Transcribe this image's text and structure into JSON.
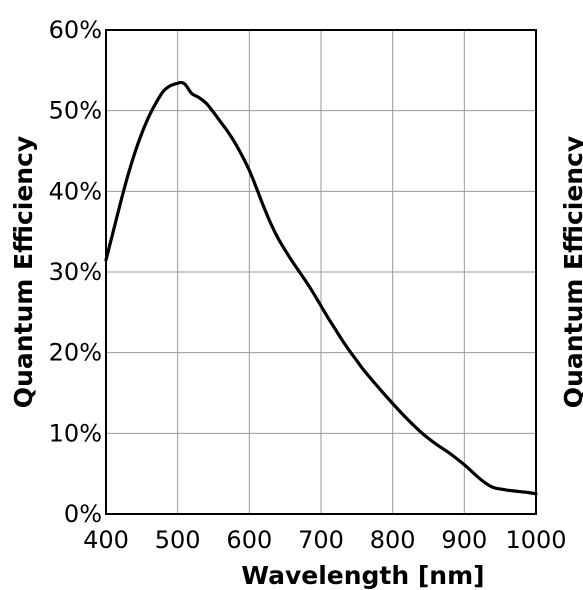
{
  "chart_data": {
    "type": "line",
    "title": "",
    "xlabel": "Wavelength [nm]",
    "ylabel": "Quantum Efficiency",
    "xlim": [
      400,
      1000
    ],
    "ylim": [
      0,
      60
    ],
    "x_ticks": [
      400,
      500,
      600,
      700,
      800,
      900,
      1000
    ],
    "x_tick_labels": [
      "400",
      "500",
      "600",
      "700",
      "800",
      "900",
      "1000"
    ],
    "y_ticks": [
      0,
      10,
      20,
      30,
      40,
      50,
      60
    ],
    "y_tick_labels": [
      "0%",
      "10%",
      "20%",
      "30%",
      "40%",
      "50%",
      "60%"
    ],
    "grid": true,
    "line_color": "#000000",
    "clipped_neighbor_ylabel": "Quantum Efficiency",
    "series": [
      {
        "x": [
          400,
          410,
          420,
          430,
          440,
          450,
          460,
          470,
          480,
          490,
          500,
          505,
          510,
          515,
          520,
          530,
          540,
          550,
          560,
          570,
          580,
          590,
          600,
          610,
          620,
          630,
          640,
          650,
          660,
          670,
          680,
          690,
          700,
          710,
          720,
          730,
          740,
          750,
          760,
          780,
          800,
          820,
          840,
          860,
          880,
          900,
          910,
          920,
          930,
          940,
          950,
          960,
          970,
          980,
          990,
          1000
        ],
        "y": [
          31.5,
          35,
          38.5,
          41.8,
          44.7,
          47.2,
          49.3,
          51,
          52.4,
          53.1,
          53.4,
          53.5,
          53.3,
          52.7,
          52.1,
          51.6,
          50.9,
          49.8,
          48.6,
          47.4,
          46,
          44.4,
          42.6,
          40.4,
          38.1,
          36,
          34.2,
          32.7,
          31.3,
          30,
          28.7,
          27.3,
          25.8,
          24.3,
          22.9,
          21.5,
          20.2,
          19,
          17.8,
          15.7,
          13.7,
          11.8,
          10.1,
          8.7,
          7.5,
          6.1,
          5.3,
          4.5,
          3.8,
          3.3,
          3.1,
          2.95,
          2.85,
          2.75,
          2.65,
          2.5
        ]
      }
    ]
  }
}
